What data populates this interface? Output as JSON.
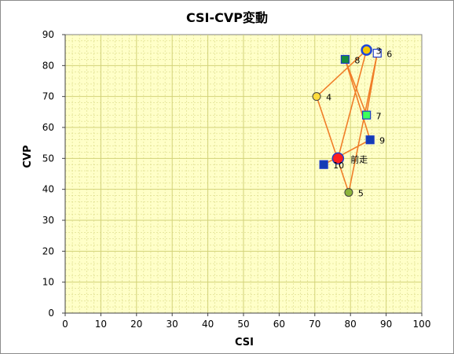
{
  "chart_data": {
    "type": "scatter",
    "title": "CSI-CVP変動",
    "xlabel": "CSI",
    "ylabel": "CVP",
    "xlim": [
      0,
      100
    ],
    "ylim": [
      0,
      90
    ],
    "x_ticks": [
      0,
      10,
      20,
      30,
      40,
      50,
      60,
      70,
      80,
      90,
      100
    ],
    "y_ticks": [
      0,
      10,
      20,
      30,
      40,
      50,
      60,
      70,
      80,
      90
    ],
    "grid": true,
    "plot_background": "#ffffc8",
    "grid_color": "#d2d278",
    "line_color": "#f07d28",
    "path_order": [
      "前走",
      "3",
      "4",
      "5",
      "6",
      "7",
      "8",
      "9",
      "10"
    ],
    "points": [
      {
        "label": "前走",
        "x": 76.5,
        "y": 50,
        "marker": "circle-large",
        "fill": "#ff1e1e",
        "stroke": "#1e3cc8"
      },
      {
        "label": "3",
        "x": 84.5,
        "y": 85,
        "marker": "circle-ring",
        "fill": "#f5c800",
        "stroke": "#1e46dc"
      },
      {
        "label": "4",
        "x": 70.5,
        "y": 70,
        "marker": "circle",
        "fill": "#ffdc3c",
        "stroke": "#3c3c3c"
      },
      {
        "label": "5",
        "x": 79.5,
        "y": 39,
        "marker": "circle",
        "fill": "#8cb43c",
        "stroke": "#3c3c3c"
      },
      {
        "label": "6",
        "x": 87.5,
        "y": 84,
        "marker": "square",
        "fill": "#ffffff",
        "stroke": "#1e3cc8"
      },
      {
        "label": "7",
        "x": 84.5,
        "y": 64,
        "marker": "square",
        "fill": "#3cff5a",
        "stroke": "#1e3cc8"
      },
      {
        "label": "8",
        "x": 78.5,
        "y": 82,
        "marker": "square",
        "fill": "#148c3c",
        "stroke": "#1e3cc8"
      },
      {
        "label": "9",
        "x": 85.5,
        "y": 56,
        "marker": "square",
        "fill": "#143cb4",
        "stroke": "#1e3cc8"
      },
      {
        "label": "10",
        "x": 72.5,
        "y": 48,
        "marker": "square",
        "fill": "#143cb4",
        "stroke": "#1e3cc8"
      }
    ]
  }
}
